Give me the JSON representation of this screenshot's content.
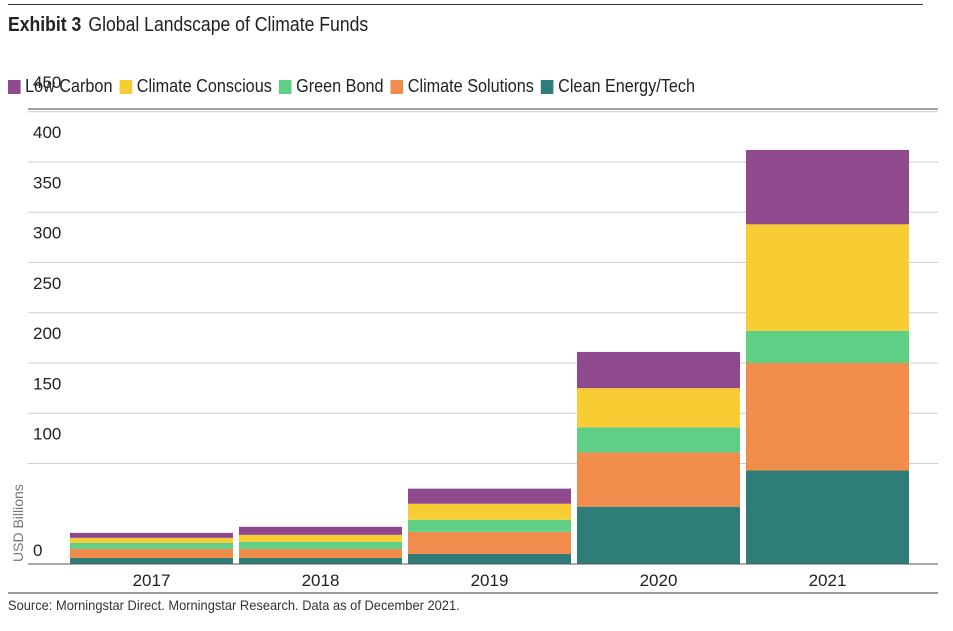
{
  "exhibit": {
    "number": "Exhibit 3",
    "title": "Global Landscape of Climate Funds"
  },
  "source": "Source: Morningstar Direct. Morningstar Research. Data as of December 2021.",
  "chart_data": {
    "type": "bar",
    "stacked": true,
    "title": "Global Landscape of Climate Funds",
    "xlabel": "",
    "ylabel": "USD Billions",
    "ylim": [
      0,
      450
    ],
    "yticks": [
      0,
      100,
      150,
      200,
      250,
      300,
      350,
      400,
      450
    ],
    "grid": true,
    "legend_position": "top-left",
    "categories": [
      "2017",
      "2018",
      "2019",
      "2020",
      "2021"
    ],
    "series": [
      {
        "name": "Clean Energy/Tech",
        "color": "#2e7d78",
        "values": [
          6,
          6,
          10,
          57,
          93
        ]
      },
      {
        "name": "Climate Solutions",
        "color": "#f08c4c",
        "values": [
          9,
          9,
          22,
          54,
          107
        ]
      },
      {
        "name": "Green Bond",
        "color": "#5ecf85",
        "values": [
          6,
          7,
          12,
          25,
          32
        ]
      },
      {
        "name": "Climate Conscious",
        "color": "#f7cd33",
        "values": [
          5,
          7,
          16,
          39,
          106
        ]
      },
      {
        "name": "Low Carbon",
        "color": "#8e4a8c",
        "values": [
          5,
          8,
          15,
          36,
          74
        ]
      }
    ]
  }
}
